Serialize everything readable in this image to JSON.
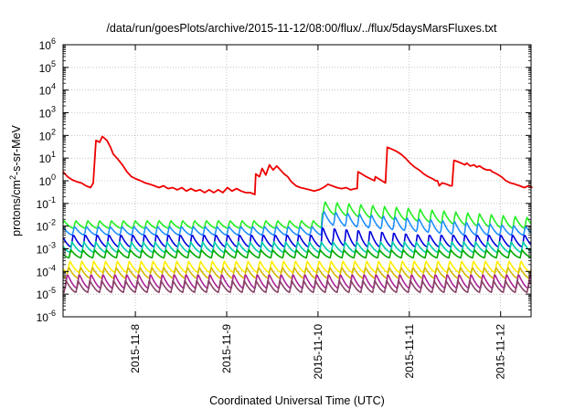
{
  "chart_data": {
    "type": "line",
    "title": "/data/run/goesPlots/archive/2015-11-12/08:00/flux/../flux/5daysMarsFluxes.txt",
    "xlabel": "Coordinated Universal Time (UTC)",
    "ylabel_prefix": "protons/cm",
    "ylabel_sup": "2",
    "ylabel_suffix": "-s-sr-MeV",
    "y_scale": "log",
    "ylim": [
      1e-06,
      1000000.0
    ],
    "y_ticks": [
      {
        "exp": "-6"
      },
      {
        "exp": "-5"
      },
      {
        "exp": "-4"
      },
      {
        "exp": "-3"
      },
      {
        "exp": "-2"
      },
      {
        "exp": "-1"
      },
      {
        "exp": "0"
      },
      {
        "exp": "1"
      },
      {
        "exp": "2"
      },
      {
        "exp": "3"
      },
      {
        "exp": "4"
      },
      {
        "exp": "5"
      },
      {
        "exp": "6"
      }
    ],
    "y_tick_base": "10",
    "xlim": [
      "2015-11-07 05:00",
      "2015-11-12 08:00"
    ],
    "x_ticks": [
      "2015-11-8",
      "2015-11-9",
      "2015-11-10",
      "2015-11-11",
      "2015-11-12"
    ],
    "grid": true,
    "series": [
      {
        "color": "#ee0000",
        "points": [
          [
            0.0,
            2.5
          ],
          [
            0.05,
            1.5
          ],
          [
            0.1,
            1.1
          ],
          [
            0.15,
            0.9
          ],
          [
            0.2,
            0.8
          ],
          [
            0.25,
            0.6
          ],
          [
            0.3,
            0.5
          ],
          [
            0.33,
            0.8
          ],
          [
            0.36,
            60
          ],
          [
            0.4,
            50
          ],
          [
            0.43,
            90
          ],
          [
            0.48,
            60
          ],
          [
            0.52,
            30
          ],
          [
            0.55,
            15
          ],
          [
            0.6,
            9
          ],
          [
            0.65,
            5
          ],
          [
            0.7,
            2.5
          ],
          [
            0.75,
            1.5
          ],
          [
            0.8,
            1.2
          ],
          [
            0.85,
            1.0
          ],
          [
            0.9,
            0.8
          ],
          [
            0.95,
            0.7
          ],
          [
            1.0,
            0.6
          ],
          [
            1.05,
            0.5
          ],
          [
            1.1,
            0.6
          ],
          [
            1.15,
            0.45
          ],
          [
            1.2,
            0.5
          ],
          [
            1.25,
            0.4
          ],
          [
            1.3,
            0.5
          ],
          [
            1.35,
            0.35
          ],
          [
            1.4,
            0.45
          ],
          [
            1.45,
            0.35
          ],
          [
            1.5,
            0.4
          ],
          [
            1.55,
            0.3
          ],
          [
            1.6,
            0.4
          ],
          [
            1.65,
            0.3
          ],
          [
            1.7,
            0.4
          ],
          [
            1.75,
            0.3
          ],
          [
            1.8,
            0.5
          ],
          [
            1.85,
            0.35
          ],
          [
            1.9,
            0.45
          ],
          [
            1.95,
            0.35
          ],
          [
            2.0,
            0.3
          ],
          [
            2.05,
            0.3
          ],
          [
            2.1,
            0.25
          ],
          [
            2.11,
            2.0
          ],
          [
            2.15,
            1.5
          ],
          [
            2.18,
            3.5
          ],
          [
            2.22,
            1.8
          ],
          [
            2.26,
            5.0
          ],
          [
            2.3,
            3.0
          ],
          [
            2.34,
            4.5
          ],
          [
            2.38,
            3.0
          ],
          [
            2.42,
            2.0
          ],
          [
            2.46,
            1.5
          ],
          [
            2.5,
            0.9
          ],
          [
            2.55,
            0.6
          ],
          [
            2.6,
            0.5
          ],
          [
            2.65,
            0.45
          ],
          [
            2.7,
            0.4
          ],
          [
            2.75,
            0.35
          ],
          [
            2.8,
            0.4
          ],
          [
            2.85,
            0.5
          ],
          [
            2.88,
            0.6
          ],
          [
            2.9,
            0.7
          ],
          [
            3.0,
            0.5
          ],
          [
            3.05,
            0.45
          ],
          [
            3.1,
            0.5
          ],
          [
            3.15,
            0.4
          ],
          [
            3.2,
            0.45
          ],
          [
            3.22,
            0.45
          ],
          [
            3.23,
            2.5
          ],
          [
            3.27,
            2.0
          ],
          [
            3.32,
            1.5
          ],
          [
            3.37,
            1.2
          ],
          [
            3.41,
            1.0
          ],
          [
            3.42,
            1.5
          ],
          [
            3.53,
            0.8
          ],
          [
            3.55,
            30
          ],
          [
            3.6,
            25
          ],
          [
            3.65,
            20
          ],
          [
            3.7,
            15
          ],
          [
            3.75,
            10
          ],
          [
            3.8,
            6.0
          ],
          [
            3.85,
            4.0
          ],
          [
            3.9,
            3.0
          ],
          [
            3.95,
            2.0
          ],
          [
            4.0,
            1.5
          ],
          [
            4.05,
            1.2
          ],
          [
            4.08,
            1.0
          ],
          [
            4.1,
            1.0
          ],
          [
            4.12,
            0.6
          ],
          [
            4.15,
            0.8
          ],
          [
            4.2,
            0.7
          ],
          [
            4.24,
            0.6
          ],
          [
            4.26,
            0.6
          ],
          [
            4.28,
            8.0
          ],
          [
            4.32,
            7.0
          ],
          [
            4.36,
            6.0
          ],
          [
            4.4,
            5.0
          ],
          [
            4.42,
            6.0
          ],
          [
            4.46,
            4.5
          ],
          [
            4.5,
            5.0
          ],
          [
            4.53,
            4.0
          ],
          [
            4.56,
            4.5
          ],
          [
            4.6,
            3.5
          ],
          [
            4.64,
            3.0
          ],
          [
            4.68,
            3.0
          ],
          [
            4.7,
            2.5
          ],
          [
            4.75,
            2.0
          ],
          [
            4.8,
            1.5
          ],
          [
            4.85,
            1.0
          ],
          [
            4.9,
            0.8
          ],
          [
            4.95,
            0.7
          ],
          [
            5.0,
            0.6
          ],
          [
            5.05,
            0.5
          ],
          [
            5.1,
            0.6
          ],
          [
            5.14,
            0.5
          ]
        ]
      },
      {
        "color": "#22ee22",
        "min": 0.008,
        "max": 0.018,
        "event_start": 2.83,
        "event_peak": 0.13,
        "event_decay": 1.4
      },
      {
        "color": "#1f8fff",
        "min": 0.004,
        "max": 0.01,
        "event_start": 2.83,
        "event_peak": 0.05,
        "event_decay": 1.4
      },
      {
        "color": "#0000dd",
        "min": 0.0012,
        "max": 0.0045,
        "event_start": 2.83,
        "event_peak": 0.01,
        "event_decay": 1.4
      },
      {
        "color": "#00ccaa",
        "min": 0.0007,
        "max": 0.002
      },
      {
        "color": "#00aa00",
        "min": 0.0004,
        "max": 0.0009
      },
      {
        "color": "#ffee00",
        "min": 9e-05,
        "max": 0.0003
      },
      {
        "color": "#d4b800",
        "min": 5e-05,
        "max": 0.00016
      },
      {
        "color": "#aa2299",
        "min": 1.8e-05,
        "max": 8e-05
      },
      {
        "color": "#884466",
        "min": 1.2e-05,
        "max": 4e-05
      }
    ],
    "sawtooth_period_days": 0.13
  }
}
